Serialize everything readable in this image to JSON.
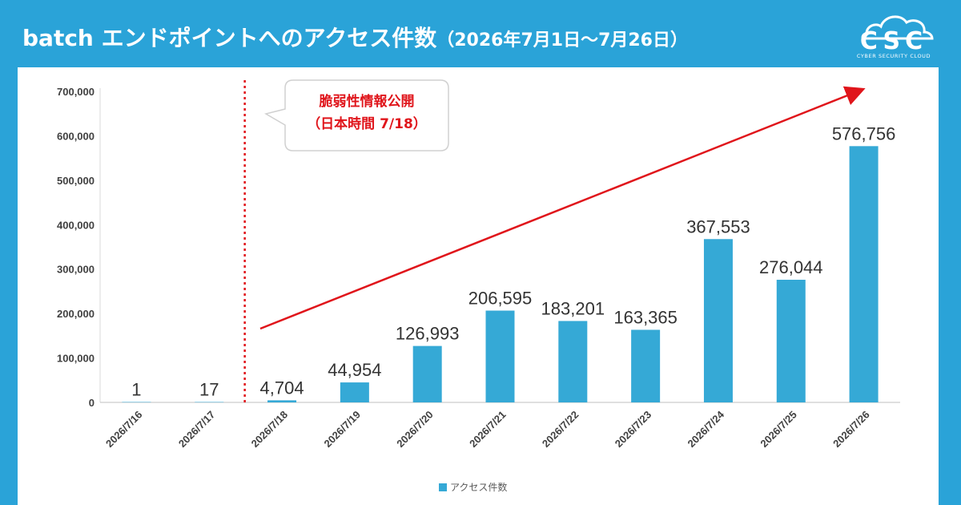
{
  "header": {
    "title": "batch エンドポイントへのアクセス件数",
    "period": "（2026年7月1日～7月26日）"
  },
  "logo": {
    "text": "CSC",
    "subtitle": "CYBER SECURITY CLOUD",
    "icon": "cloud-icon"
  },
  "annotation": {
    "line1": "脆弱性情報公開",
    "line2": "（日本時間 7/18）",
    "marker_category": "2026/7/18"
  },
  "colors": {
    "background": "#2aa3d8",
    "bar": "#35a9d6",
    "annotation_red": "#e0151b",
    "axis_text": "#404040"
  },
  "chart_data": {
    "type": "bar",
    "title": "",
    "xlabel": "",
    "ylabel": "",
    "categories": [
      "2026/7/16",
      "2026/7/17",
      "2026/7/18",
      "2026/7/19",
      "2026/7/20",
      "2026/7/21",
      "2026/7/22",
      "2026/7/23",
      "2026/7/24",
      "2026/7/25",
      "2026/7/26"
    ],
    "series": [
      {
        "name": "アクセス件数",
        "values": [
          1,
          17,
          4704,
          44954,
          126993,
          206595,
          183201,
          163365,
          367553,
          276044,
          576756
        ]
      }
    ],
    "data_labels": [
      "1",
      "17",
      "4,704",
      "44,954",
      "126,993",
      "206,595",
      "183,201",
      "163,365",
      "367,553",
      "276,044",
      "576,756"
    ],
    "ylim": [
      0,
      700000
    ],
    "yticks": [
      0,
      100000,
      200000,
      300000,
      400000,
      500000,
      600000,
      700000
    ],
    "ytick_labels": [
      "0",
      "100,000",
      "200,000",
      "300,000",
      "400,000",
      "500,000",
      "600,000",
      "700,000"
    ],
    "grid": false,
    "legend": "bottom"
  }
}
